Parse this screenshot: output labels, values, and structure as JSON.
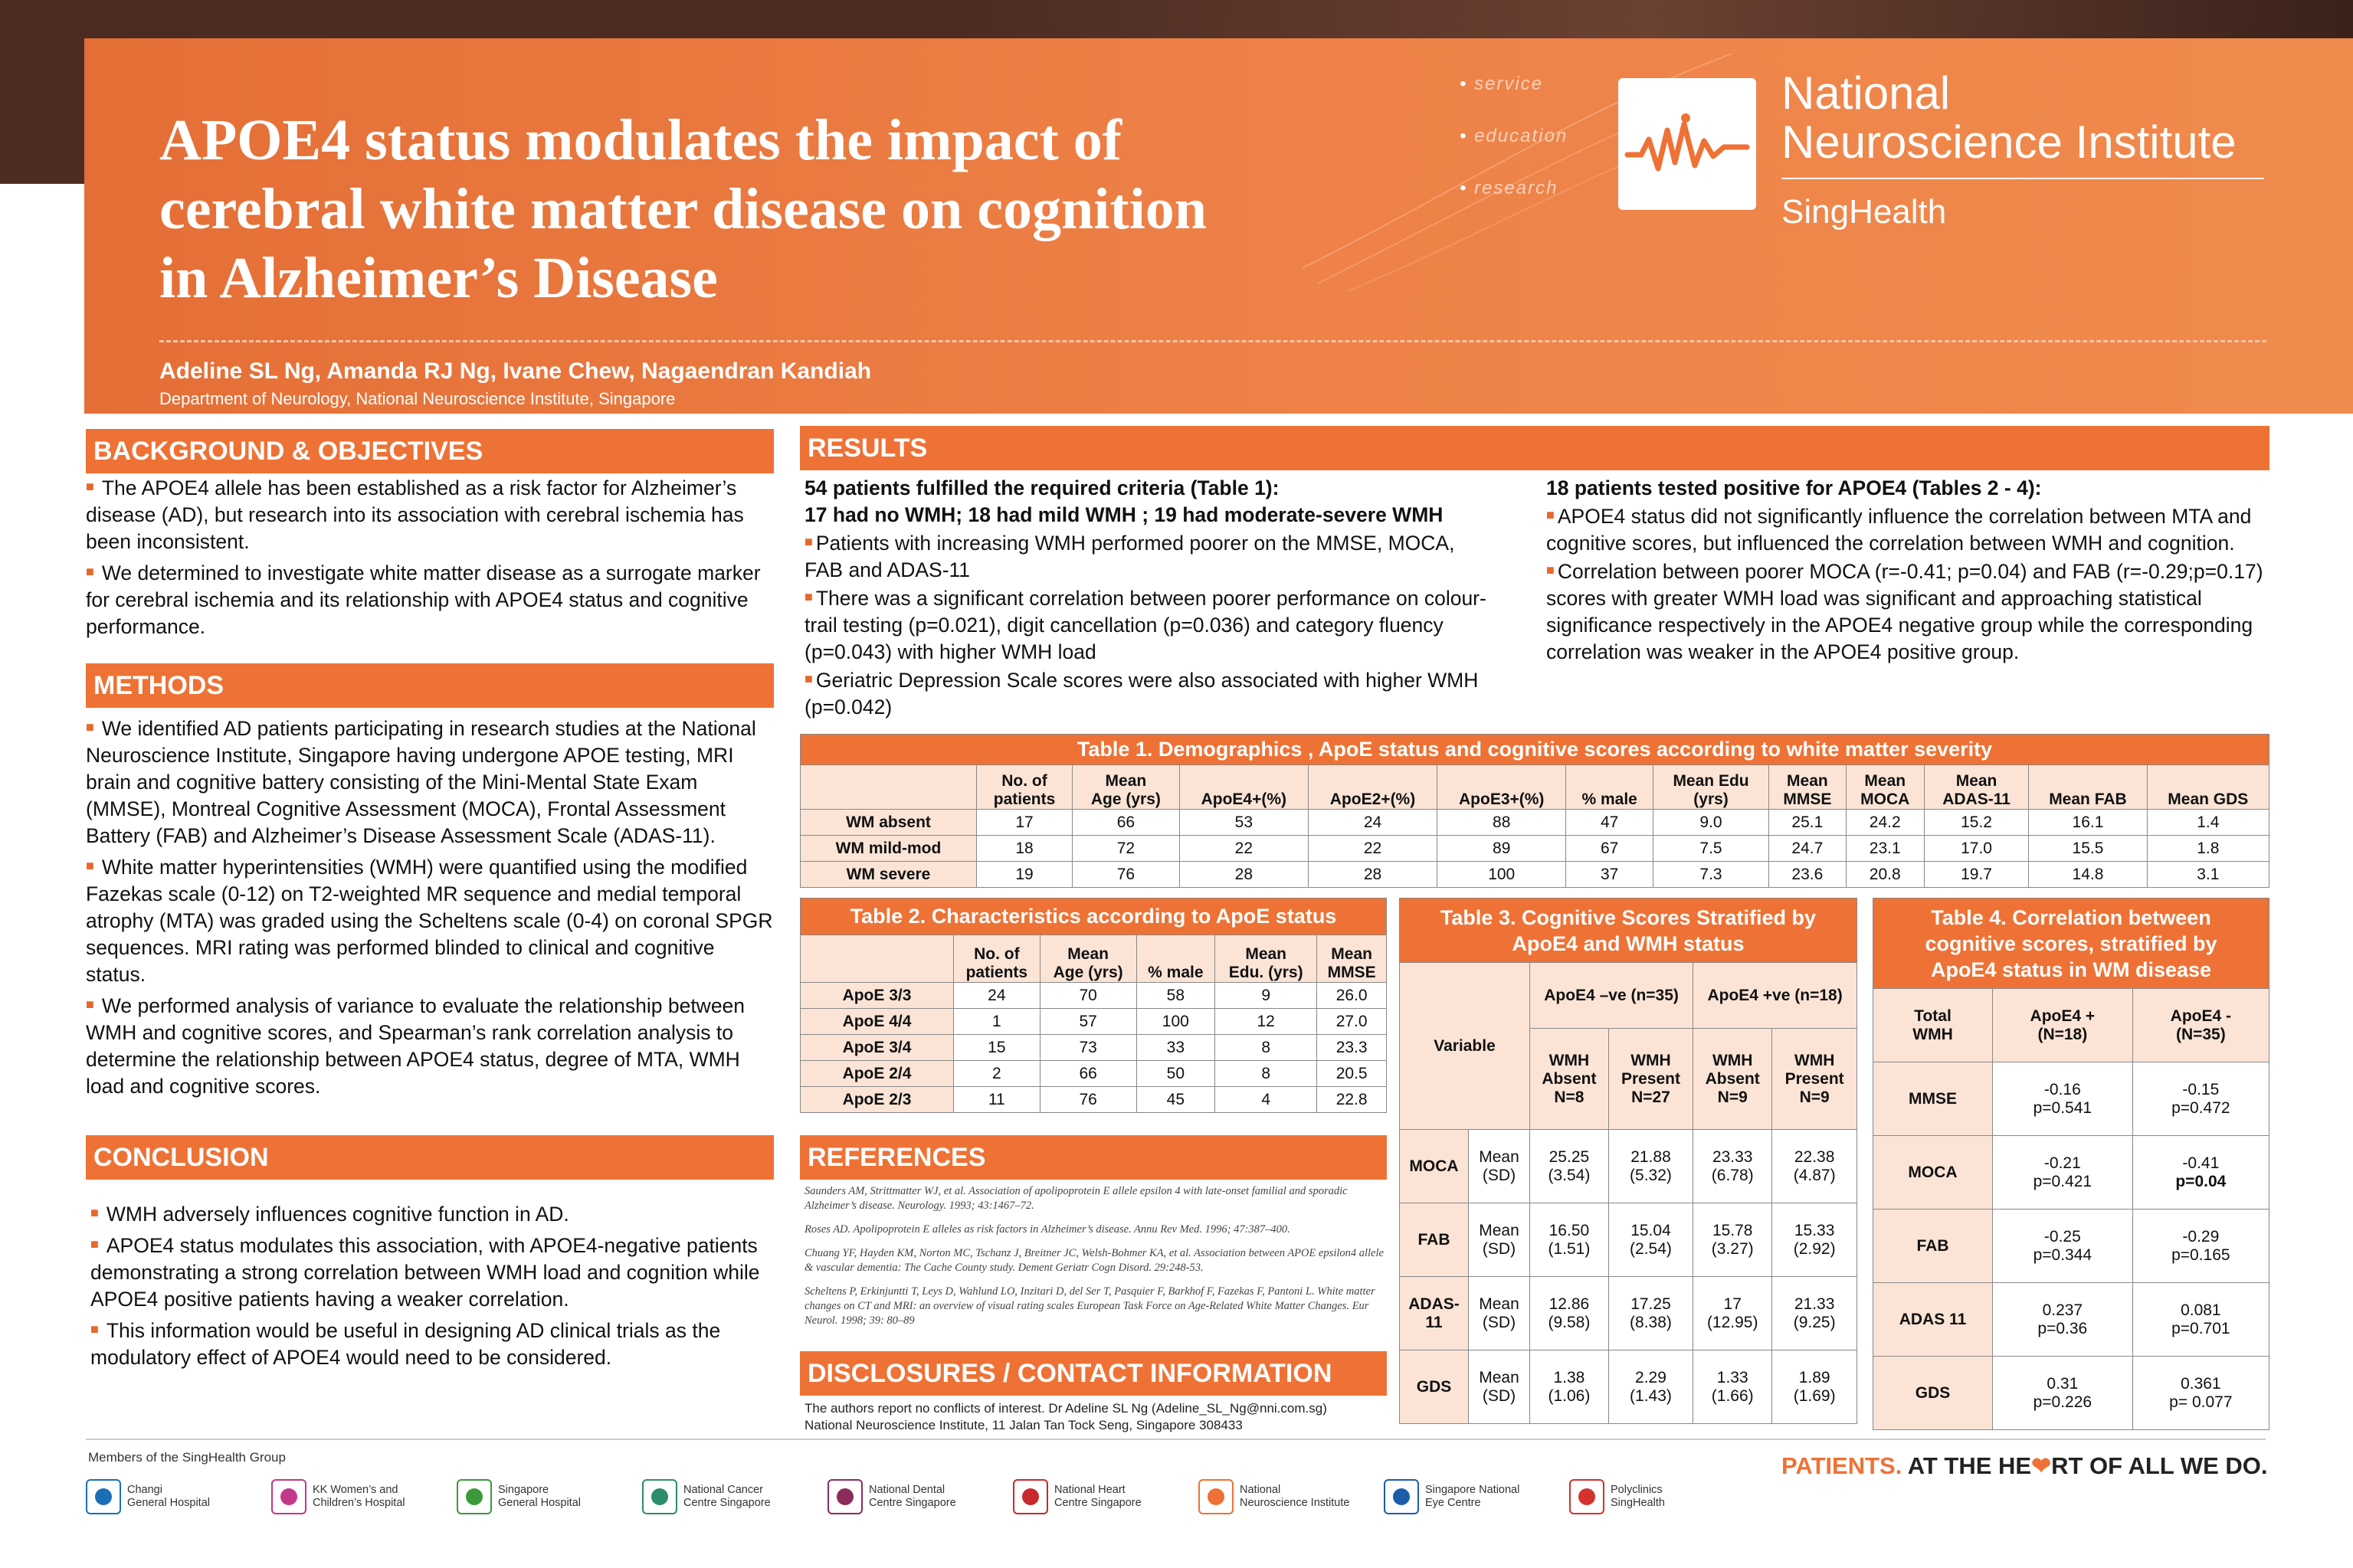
{
  "header": {
    "title_lines": [
      "APOE4 status modulates the impact of",
      "cerebral white matter disease on cognition",
      "in Alzheimer’s Disease"
    ],
    "taglines": [
      "service",
      "education",
      "research"
    ],
    "logo_name_1": "National",
    "logo_name_2": "Neuroscience Institute",
    "logo_sub": "SingHealth",
    "authors": "Adeline SL Ng, Amanda RJ Ng, Ivane Chew, Nagaendran Kandiah",
    "affiliation": "Department of Neurology, National Neuroscience Institute, Singapore"
  },
  "background": {
    "heading": "BACKGROUND & OBJECTIVES",
    "p1": "The APOE4 allele has been established as a risk factor for Alzheimer’s disease (AD), but research into its association with cerebral ischemia has been inconsistent.",
    "p2": "We determined to investigate white matter disease as a surrogate marker for cerebral ischemia and its relationship with APOE4 status and cognitive performance."
  },
  "methods": {
    "heading": "METHODS",
    "p1": "We identified AD patients participating in research studies at the National Neuroscience Institute, Singapore having undergone APOE testing, MRI brain and cognitive battery consisting of the Mini-Mental State Exam (MMSE), Montreal Cognitive Assessment (MOCA), Frontal Assessment Battery (FAB) and Alzheimer’s Disease Assessment Scale (ADAS-11).",
    "p2": "White matter hyperintensities (WMH) were quantified using the modified Fazekas scale (0-12) on T2-weighted MR sequence and medial temporal atrophy (MTA) was graded using the Scheltens scale (0-4) on coronal SPGR sequences. MRI rating was performed blinded to clinical and cognitive status.",
    "p3": "We performed analysis of variance to evaluate the relationship between WMH and cognitive scores, and Spearman’s rank correlation analysis to determine the relationship between APOE4 status, degree of MTA, WMH load and cognitive scores."
  },
  "conclusion": {
    "heading": "CONCLUSION",
    "p1": "WMH adversely influences cognitive function in AD.",
    "p2": "APOE4 status modulates this association, with APOE4-negative patients demonstrating a strong correlation between WMH load and cognition while APOE4 positive patients having a weaker correlation.",
    "p3": "This information would be useful in designing AD clinical trials as the modulatory effect of APOE4 would need to be considered."
  },
  "results": {
    "heading": "RESULTS",
    "left_head1": "54 patients fulfilled the required criteria (Table 1):",
    "left_head2": "17 had no WMH; 18 had mild WMH ; 19 had moderate-severe WMH",
    "left_b1": "Patients with increasing WMH performed poorer on the MMSE, MOCA, FAB and ADAS-11",
    "left_b2": "There was a significant correlation between poorer performance on colour-trail testing (p=0.021), digit cancellation (p=0.036) and category fluency (p=0.043) with higher WMH load",
    "left_b3": "Geriatric Depression Scale scores were also associated with higher WMH (p=0.042)",
    "right_head": "18 patients tested positive for APOE4 (Tables 2 - 4):",
    "right_b1": "APOE4 status did not significantly influence the correlation between MTA and cognitive scores, but influenced the correlation between WMH and cognition.",
    "right_b2": "Correlation between poorer MOCA (r=-0.41; p=0.04) and FAB (r=-0.29;p=0.17) scores with greater WMH load was significant and approaching statistical significance respectively in the APOE4 negative group while the corresponding correlation was weaker in the APOE4 positive group."
  },
  "table1": {
    "caption": "Table 1.  Demographics , ApoE status and cognitive scores according to white matter severity",
    "headers": [
      [
        "No. of",
        "patients"
      ],
      [
        "Mean",
        "Age (yrs)"
      ],
      [
        "",
        "ApoE4+(%)"
      ],
      [
        "",
        "ApoE2+(%)"
      ],
      [
        "",
        "ApoE3+(%)"
      ],
      [
        "",
        "% male"
      ],
      [
        "Mean Edu",
        "(yrs)"
      ],
      [
        "Mean",
        "MMSE"
      ],
      [
        "Mean",
        "MOCA"
      ],
      [
        "Mean",
        "ADAS-11"
      ],
      [
        "",
        "Mean FAB"
      ],
      [
        "",
        "Mean GDS"
      ]
    ],
    "rows": [
      {
        "label": "WM absent",
        "cells": [
          "17",
          "66",
          "53",
          "24",
          "88",
          "47",
          "9.0",
          "25.1",
          "24.2",
          "15.2",
          "16.1",
          "1.4"
        ]
      },
      {
        "label": "WM mild-mod",
        "cells": [
          "18",
          "72",
          "22",
          "22",
          "89",
          "67",
          "7.5",
          "24.7",
          "23.1",
          "17.0",
          "15.5",
          "1.8"
        ]
      },
      {
        "label": "WM severe",
        "cells": [
          "19",
          "76",
          "28",
          "28",
          "100",
          "37",
          "7.3",
          "23.6",
          "20.8",
          "19.7",
          "14.8",
          "3.1"
        ]
      }
    ]
  },
  "table2": {
    "caption": "Table 2.  Characteristics according to ApoE status",
    "headers": [
      [
        "No. of",
        "patients"
      ],
      [
        "Mean",
        "Age (yrs)"
      ],
      [
        "",
        "% male"
      ],
      [
        "Mean",
        "Edu. (yrs)"
      ],
      [
        "Mean",
        "MMSE"
      ]
    ],
    "rows": [
      {
        "label": "ApoE 3/3",
        "cells": [
          "24",
          "70",
          "58",
          "9",
          "26.0"
        ]
      },
      {
        "label": "ApoE 4/4",
        "cells": [
          "1",
          "57",
          "100",
          "12",
          "27.0"
        ]
      },
      {
        "label": "ApoE 3/4",
        "cells": [
          "15",
          "73",
          "33",
          "8",
          "23.3"
        ]
      },
      {
        "label": "ApoE 2/4",
        "cells": [
          "2",
          "66",
          "50",
          "8",
          "20.5"
        ]
      },
      {
        "label": "ApoE 2/3",
        "cells": [
          "11",
          "76",
          "45",
          "4",
          "22.8"
        ]
      }
    ]
  },
  "table3": {
    "caption1": "Table 3. Cognitive Scores Stratified by",
    "caption2": "ApoE4 and WMH status",
    "variable": "Variable",
    "grp_neg": "ApoE4 –ve (n=35)",
    "grp_pos": "ApoE4 +ve (n=18)",
    "sub": [
      [
        "WMH",
        "Absent",
        "N=8"
      ],
      [
        "WMH",
        "Present",
        "N=27"
      ],
      [
        "WMH",
        "Absent",
        "N=9"
      ],
      [
        "WMH",
        "Present",
        "N=9"
      ]
    ],
    "stat1": "Mean",
    "stat2": "(SD)",
    "rows": [
      {
        "label": "MOCA",
        "cells": [
          [
            "25.25",
            "(3.54)"
          ],
          [
            "21.88",
            "(5.32)"
          ],
          [
            "23.33",
            "(6.78)"
          ],
          [
            "22.38",
            "(4.87)"
          ]
        ]
      },
      {
        "label": "FAB",
        "cells": [
          [
            "16.50",
            "(1.51)"
          ],
          [
            "15.04",
            "(2.54)"
          ],
          [
            "15.78",
            "(3.27)"
          ],
          [
            "15.33",
            "(2.92)"
          ]
        ]
      },
      {
        "label": "ADAS-11",
        "cells": [
          [
            "12.86",
            "(9.58)"
          ],
          [
            "17.25",
            "(8.38)"
          ],
          [
            "17",
            "(12.95)"
          ],
          [
            "21.33",
            "(9.25)"
          ]
        ]
      },
      {
        "label": "GDS",
        "cells": [
          [
            "1.38",
            "(1.06)"
          ],
          [
            "2.29",
            "(1.43)"
          ],
          [
            "1.33",
            "(1.66)"
          ],
          [
            "1.89",
            "(1.69)"
          ]
        ]
      }
    ]
  },
  "table4": {
    "caption1": "Table 4. Correlation between",
    "caption2": "cognitive scores, stratified by",
    "caption3": "ApoE4 status in WM disease",
    "total1": "Total",
    "total2": "WMH",
    "col1": [
      "ApoE4 +",
      "(N=18)"
    ],
    "col2": [
      "ApoE4 -",
      "(N=35)"
    ],
    "rows": [
      {
        "label": "MMSE",
        "c1": [
          "-0.16",
          "p=0.541"
        ],
        "c2": [
          "-0.15",
          "p=0.472"
        ]
      },
      {
        "label": "MOCA",
        "c1": [
          "-0.21",
          "p=0.421"
        ],
        "c2": [
          "-0.41",
          "p=0.04"
        ]
      },
      {
        "label": "FAB",
        "c1": [
          "-0.25",
          "p=0.344"
        ],
        "c2": [
          "-0.29",
          "p=0.165"
        ]
      },
      {
        "label": "ADAS 11",
        "c1": [
          "0.237",
          "p=0.36"
        ],
        "c2": [
          "0.081",
          "p=0.701"
        ]
      },
      {
        "label": "GDS",
        "c1": [
          "0.31",
          "p=0.226"
        ],
        "c2": [
          "0.361",
          "p= 0.077"
        ]
      }
    ]
  },
  "references": {
    "heading": "REFERENCES",
    "r1": "Saunders AM, Strittmatter WJ, et al. Association of apolipoprotein E allele epsilon 4 with late-onset familial and sporadic Alzheimer’s disease. Neurology. 1993; 43:1467–72.",
    "r2": "Roses AD. Apolipoprotein E alleles as risk factors in Alzheimer’s disease. Annu Rev Med. 1996; 47:387–400.",
    "r3": "Chuang YF, Hayden KM, Norton MC, Tschanz J, Breitner JC, Welsh-Bohmer KA, et al. Association between APOE epsilon4 allele & vascular dementia: The Cache County study. Dement Geriatr Cogn Disord. 29:248-53.",
    "r4": "Scheltens P, Erkinjuntti T, Leys D, Wahlund LO, Inzitari D, del Ser T, Pasquier F, Barkhof F, Fazekas F, Pantoni L. White matter changes on CT and MRI: an overview of visual rating scales European Task Force on Age-Related White Matter Changes. Eur Neurol. 1998; 39: 80–89"
  },
  "disclosures": {
    "heading": "DISCLOSURES / CONTACT INFORMATION",
    "line1": "The authors report no conflicts of interest. Dr Adeline SL Ng (Adeline_SL_Ng@nni.com.sg)",
    "line2": "National Neuroscience Institute, 11 Jalan Tan Tock Seng, Singapore 308433"
  },
  "footer": {
    "members": "Members of the SingHealth Group",
    "hospitals": [
      {
        "name": "Changi\nGeneral Hospital",
        "icon": "changi-icon",
        "color": "#1a6fb5"
      },
      {
        "name": "KK Women’s and\nChildren’s Hospital",
        "icon": "kkh-icon",
        "color": "#c2378a"
      },
      {
        "name": "Singapore\nGeneral Hospital",
        "icon": "sgh-icon",
        "color": "#3a9a3a"
      },
      {
        "name": "National Cancer\nCentre Singapore",
        "icon": "nccs-icon",
        "color": "#2c8c6c"
      },
      {
        "name": "National Dental\nCentre Singapore",
        "icon": "ndcs-icon",
        "color": "#8c2c5c"
      },
      {
        "name": "National Heart\nCentre Singapore",
        "icon": "nhcs-icon",
        "color": "#c8282e"
      },
      {
        "name": "National\nNeuroscience Institute",
        "icon": "nni-icon",
        "color": "#ee7235"
      },
      {
        "name": "Singapore National\nEye Centre",
        "icon": "snec-icon",
        "color": "#1b5ea8"
      },
      {
        "name": "Polyclinics\nSingHealth",
        "icon": "polyclinics-icon",
        "color": "#d2332c"
      }
    ],
    "slogan_a": "PATIENTS.",
    "slogan_b": " AT THE HE",
    "slogan_c": "RT OF ALL WE DO."
  },
  "colors": {
    "accent": "#ee7235",
    "header_bg": "#eb7a40",
    "dark": "#4b2b22",
    "table_fill": "#fbe4d6"
  }
}
